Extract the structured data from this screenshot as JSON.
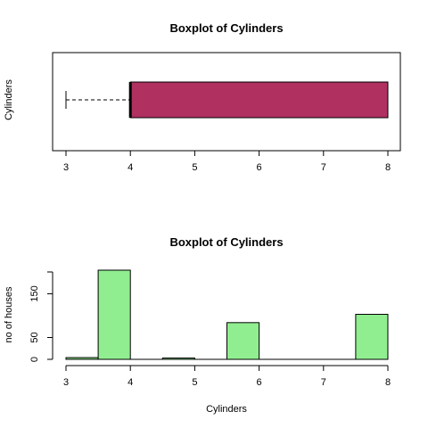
{
  "chart_data": [
    {
      "type": "boxplot",
      "orientation": "horizontal",
      "title": "Boxplot of Cylinders",
      "ylabel": "Cylinders",
      "xlabel": "",
      "x_ticks": [
        3,
        4,
        5,
        6,
        7,
        8
      ],
      "stats": {
        "min": 3,
        "q1": 4,
        "median": 4,
        "q3": 8,
        "max": 8
      },
      "fill_color": "#b03060",
      "xlim": [
        3,
        8
      ]
    },
    {
      "type": "histogram",
      "title": "Boxplot of Cylinders",
      "xlabel": "Cylinders",
      "ylabel": "no of houses",
      "x_ticks": [
        3,
        4,
        5,
        6,
        7,
        8
      ],
      "y_ticks": [
        0,
        50,
        150
      ],
      "bins": [
        {
          "start": 3.0,
          "end": 3.5,
          "count": 4
        },
        {
          "start": 3.5,
          "end": 4.0,
          "count": 204
        },
        {
          "start": 4.0,
          "end": 4.5,
          "count": 0
        },
        {
          "start": 4.5,
          "end": 5.0,
          "count": 3
        },
        {
          "start": 5.0,
          "end": 5.5,
          "count": 0
        },
        {
          "start": 5.5,
          "end": 6.0,
          "count": 84
        },
        {
          "start": 6.0,
          "end": 6.5,
          "count": 0
        },
        {
          "start": 6.5,
          "end": 7.0,
          "count": 0
        },
        {
          "start": 7.0,
          "end": 7.5,
          "count": 0
        },
        {
          "start": 7.5,
          "end": 8.0,
          "count": 103
        }
      ],
      "fill_color": "#90ee90",
      "xlim": [
        3,
        8
      ],
      "ylim": [
        0,
        204
      ]
    }
  ]
}
